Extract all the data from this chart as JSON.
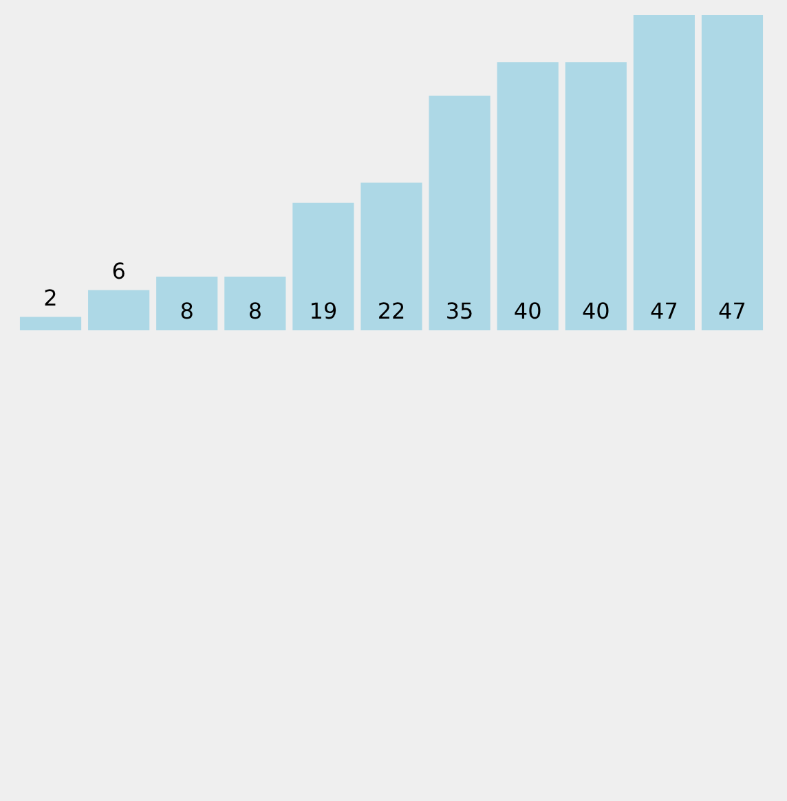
{
  "chart_data": {
    "type": "bar",
    "categories": [
      null,
      null,
      null,
      null,
      null,
      null,
      null,
      null,
      null,
      null,
      null
    ],
    "values": [
      2,
      6,
      8,
      8,
      19,
      22,
      35,
      40,
      40,
      47,
      47
    ],
    "color": "#add8e6",
    "data_labels": true
  }
}
